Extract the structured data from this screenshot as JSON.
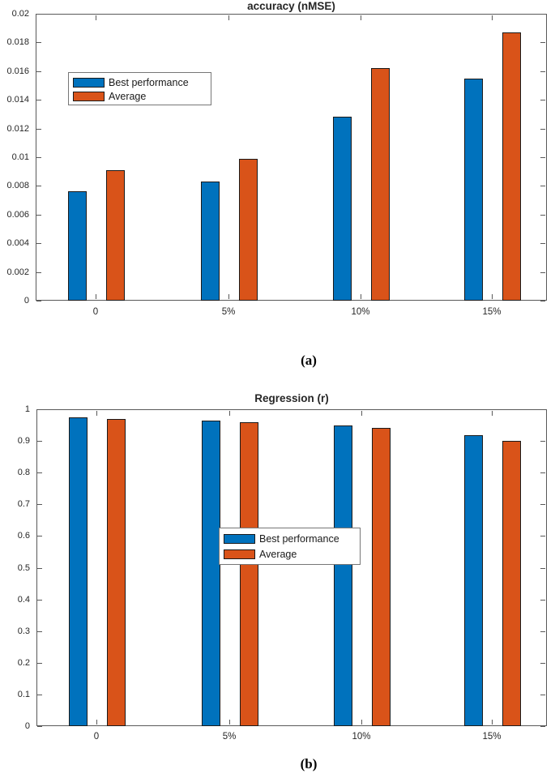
{
  "page": {
    "background": "#ffffff"
  },
  "colors": {
    "series_blue": "#0072BD",
    "series_orange": "#D95319",
    "axis": "#595959",
    "tick_label": "#262626",
    "bar_edge": "#1a1a1a",
    "legend_border": "#777777"
  },
  "chart_data": [
    {
      "type": "bar",
      "panel": "a",
      "title": "accuracy (nMSE)",
      "caption": "(a)",
      "categories": [
        "0",
        "5%",
        "10%",
        "15%"
      ],
      "series": [
        {
          "name": "Best performance",
          "color": "#0072BD",
          "values": [
            0.0076,
            0.0083,
            0.0128,
            0.0155
          ]
        },
        {
          "name": "Average",
          "color": "#D95319",
          "values": [
            0.0091,
            0.0099,
            0.0162,
            0.0187
          ]
        }
      ],
      "ylim": [
        0,
        0.02
      ],
      "yticks": [
        "0",
        "0.002",
        "0.004",
        "0.006",
        "0.008",
        "0.01",
        "0.012",
        "0.014",
        "0.016",
        "0.018",
        "0.02"
      ],
      "xlabel": "",
      "ylabel": "",
      "grid": false,
      "legend_position": "upper-left"
    },
    {
      "type": "bar",
      "panel": "b",
      "title": "Regression (r)",
      "caption": "(b)",
      "categories": [
        "0",
        "5%",
        "10%",
        "15%"
      ],
      "series": [
        {
          "name": "Best performance",
          "color": "#0072BD",
          "values": [
            0.975,
            0.963,
            0.95,
            0.918
          ]
        },
        {
          "name": "Average",
          "color": "#D95319",
          "values": [
            0.97,
            0.96,
            0.942,
            0.901
          ]
        }
      ],
      "ylim": [
        0,
        1
      ],
      "yticks": [
        "0",
        "0.1",
        "0.2",
        "0.3",
        "0.4",
        "0.5",
        "0.6",
        "0.7",
        "0.8",
        "0.9",
        "1"
      ],
      "xlabel": "",
      "ylabel": "",
      "grid": false,
      "legend_position": "center"
    }
  ]
}
